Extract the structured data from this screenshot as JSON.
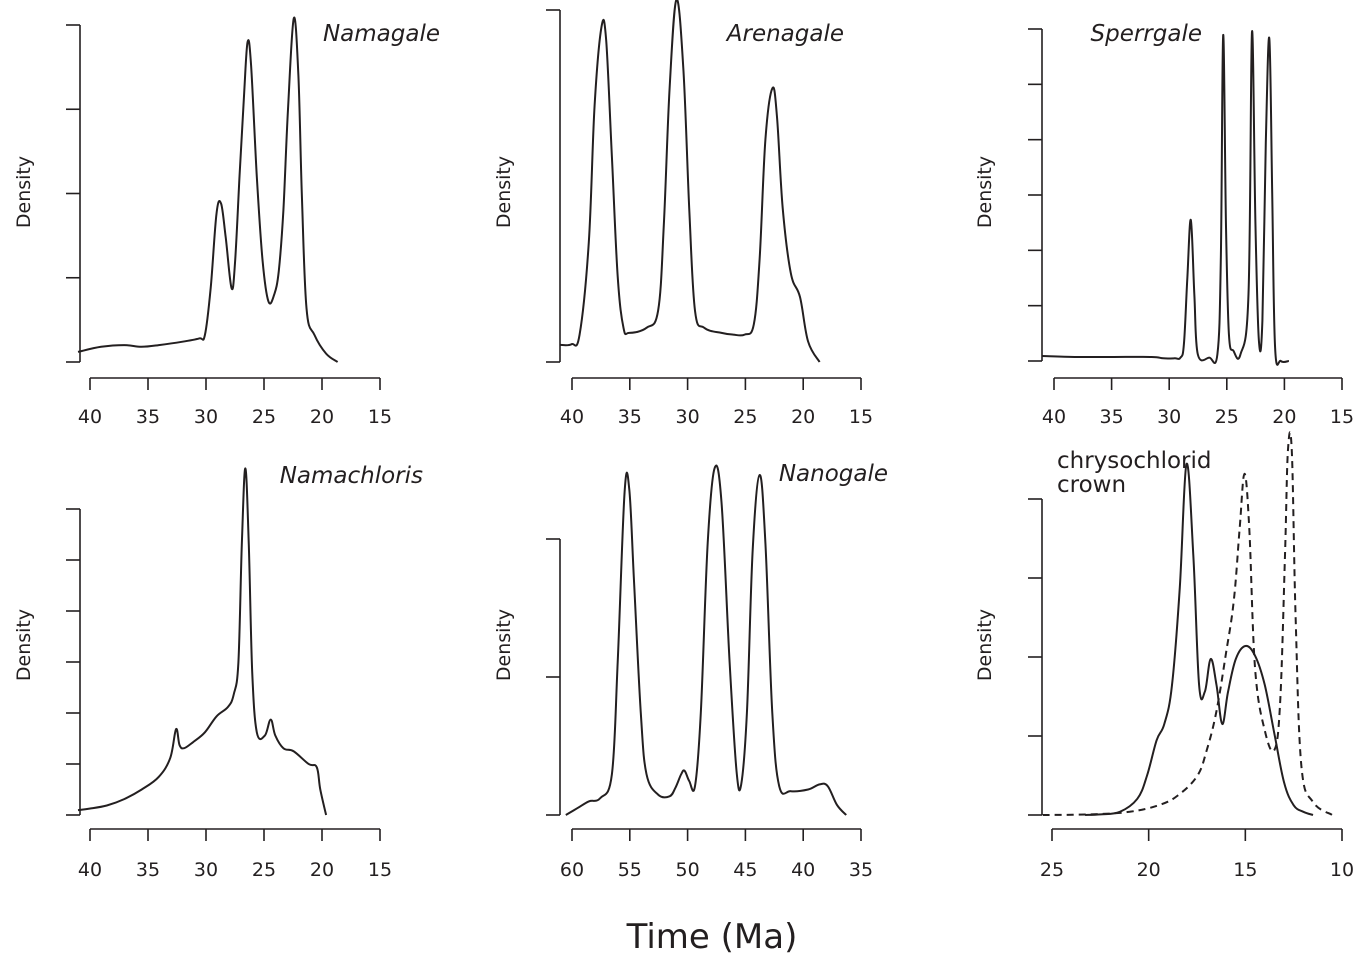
{
  "figure": {
    "x_axis_title": "Time (Ma)"
  },
  "chart_data": [
    {
      "type": "line",
      "title": "Namagale",
      "ylabel": "Density",
      "xlim": [
        41,
        15
      ],
      "x_ticks": [
        40,
        35,
        30,
        25,
        20,
        15
      ],
      "y_tick_count": 5,
      "ymax": 1.0,
      "series": [
        {
          "style": "solid",
          "points": [
            [
              41,
              0.03
            ],
            [
              39,
              0.045
            ],
            [
              37,
              0.05
            ],
            [
              35.5,
              0.045
            ],
            [
              34,
              0.05
            ],
            [
              32,
              0.06
            ],
            [
              30.5,
              0.07
            ],
            [
              30,
              0.08
            ],
            [
              29.5,
              0.22
            ],
            [
              29,
              0.44
            ],
            [
              28.6,
              0.47
            ],
            [
              28.2,
              0.37
            ],
            [
              27.7,
              0.22
            ],
            [
              27.4,
              0.29
            ],
            [
              27,
              0.55
            ],
            [
              26.6,
              0.8
            ],
            [
              26.3,
              0.95
            ],
            [
              26,
              0.88
            ],
            [
              25.5,
              0.55
            ],
            [
              25,
              0.3
            ],
            [
              24.5,
              0.18
            ],
            [
              24,
              0.2
            ],
            [
              23.6,
              0.27
            ],
            [
              23.2,
              0.45
            ],
            [
              22.8,
              0.75
            ],
            [
              22.3,
              1.02
            ],
            [
              21.9,
              0.85
            ],
            [
              21.6,
              0.5
            ],
            [
              21.2,
              0.16
            ],
            [
              20.5,
              0.08
            ],
            [
              19.5,
              0.025
            ],
            [
              18.5,
              0.0
            ]
          ]
        }
      ]
    },
    {
      "type": "line",
      "title": "Arenagale",
      "ylabel": "Density",
      "xlim": [
        41,
        15
      ],
      "x_ticks": [
        40,
        35,
        30,
        25,
        20,
        15
      ],
      "y_tick_count": 2,
      "ymax": 1.0,
      "series": [
        {
          "style": "solid",
          "points": [
            [
              41,
              0.05
            ],
            [
              40,
              0.052
            ],
            [
              39.3,
              0.08
            ],
            [
              38.5,
              0.35
            ],
            [
              38,
              0.75
            ],
            [
              37.4,
              0.98
            ],
            [
              37,
              0.94
            ],
            [
              36.5,
              0.6
            ],
            [
              36,
              0.25
            ],
            [
              35.5,
              0.1
            ],
            [
              35,
              0.085
            ],
            [
              33.5,
              0.1
            ],
            [
              32.5,
              0.15
            ],
            [
              32,
              0.4
            ],
            [
              31.5,
              0.8
            ],
            [
              30.9,
              1.06
            ],
            [
              30.3,
              0.85
            ],
            [
              29.8,
              0.45
            ],
            [
              29.3,
              0.15
            ],
            [
              28.5,
              0.1
            ],
            [
              27,
              0.085
            ],
            [
              26,
              0.08
            ],
            [
              25,
              0.08
            ],
            [
              24.2,
              0.11
            ],
            [
              23.7,
              0.3
            ],
            [
              23.2,
              0.65
            ],
            [
              22.6,
              0.8
            ],
            [
              22.2,
              0.72
            ],
            [
              21.7,
              0.45
            ],
            [
              21,
              0.26
            ],
            [
              20.2,
              0.19
            ],
            [
              19.5,
              0.06
            ],
            [
              18.5,
              0.0
            ]
          ]
        }
      ]
    },
    {
      "type": "line",
      "title": "Sperrgale",
      "ylabel": "Density",
      "xlim": [
        41,
        15
      ],
      "x_ticks": [
        40,
        35,
        30,
        25,
        20,
        15
      ],
      "y_tick_count": 7,
      "ymax": 1.0,
      "series": [
        {
          "style": "solid",
          "points": [
            [
              41,
              0.015
            ],
            [
              38,
              0.012
            ],
            [
              35,
              0.012
            ],
            [
              31.5,
              0.012
            ],
            [
              30.5,
              0.008
            ],
            [
              29.5,
              0.008
            ],
            [
              29,
              0.01
            ],
            [
              28.7,
              0.05
            ],
            [
              28.4,
              0.25
            ],
            [
              28.1,
              0.42
            ],
            [
              27.8,
              0.2
            ],
            [
              27.5,
              0.02
            ],
            [
              26.5,
              0.01
            ],
            [
              25.8,
              0.02
            ],
            [
              25.5,
              0.3
            ],
            [
              25.3,
              0.97
            ],
            [
              25.05,
              0.4
            ],
            [
              24.8,
              0.08
            ],
            [
              24.4,
              0.03
            ],
            [
              23.8,
              0.02
            ],
            [
              23.1,
              0.2
            ],
            [
              22.8,
              0.98
            ],
            [
              22.5,
              0.4
            ],
            [
              22.2,
              0.06
            ],
            [
              21.9,
              0.12
            ],
            [
              21.6,
              0.65
            ],
            [
              21.3,
              0.96
            ],
            [
              21.05,
              0.5
            ],
            [
              20.8,
              0.04
            ],
            [
              20.3,
              0.0
            ],
            [
              19.6,
              0.0
            ]
          ]
        }
      ]
    },
    {
      "type": "line",
      "title": "Namachloris",
      "ylabel": "Density",
      "xlim": [
        41,
        15
      ],
      "x_ticks": [
        40,
        35,
        30,
        25,
        20,
        15
      ],
      "y_tick_count": 7,
      "ymax": 1.0,
      "series": [
        {
          "style": "solid",
          "points": [
            [
              41,
              0.015
            ],
            [
              40,
              0.02
            ],
            [
              38.5,
              0.03
            ],
            [
              37,
              0.05
            ],
            [
              35.5,
              0.08
            ],
            [
              34,
              0.12
            ],
            [
              33,
              0.18
            ],
            [
              32.5,
              0.27
            ],
            [
              32.2,
              0.22
            ],
            [
              31.8,
              0.21
            ],
            [
              31,
              0.23
            ],
            [
              30,
              0.26
            ],
            [
              29,
              0.31
            ],
            [
              28,
              0.34
            ],
            [
              27.5,
              0.38
            ],
            [
              27.1,
              0.48
            ],
            [
              26.8,
              0.85
            ],
            [
              26.5,
              1.09
            ],
            [
              26.2,
              0.85
            ],
            [
              25.9,
              0.45
            ],
            [
              25.5,
              0.26
            ],
            [
              24.8,
              0.25
            ],
            [
              24.3,
              0.3
            ],
            [
              23.9,
              0.25
            ],
            [
              23.2,
              0.21
            ],
            [
              22.3,
              0.2
            ],
            [
              21,
              0.16
            ],
            [
              20.3,
              0.15
            ],
            [
              20,
              0.08
            ],
            [
              19.5,
              0.0
            ]
          ]
        }
      ]
    },
    {
      "type": "line",
      "title": "Nanogale",
      "ylabel": "Density",
      "xlim": [
        61,
        35
      ],
      "x_ticks": [
        60,
        55,
        50,
        45,
        40,
        35
      ],
      "y_tick_count": 3,
      "ymax": 1.0,
      "series": [
        {
          "style": "solid",
          "points": [
            [
              60.5,
              0.0
            ],
            [
              59.5,
              0.02
            ],
            [
              58.5,
              0.04
            ],
            [
              57.5,
              0.05
            ],
            [
              56.5,
              0.12
            ],
            [
              56,
              0.45
            ],
            [
              55.4,
              0.95
            ],
            [
              55,
              0.96
            ],
            [
              54.6,
              0.7
            ],
            [
              54,
              0.3
            ],
            [
              53.5,
              0.12
            ],
            [
              52.5,
              0.06
            ],
            [
              51.5,
              0.055
            ],
            [
              51,
              0.08
            ],
            [
              50.5,
              0.12
            ],
            [
              50.2,
              0.13
            ],
            [
              49.8,
              0.1
            ],
            [
              49.3,
              0.085
            ],
            [
              48.8,
              0.3
            ],
            [
              48.2,
              0.8
            ],
            [
              47.6,
              1.02
            ],
            [
              47,
              0.92
            ],
            [
              46.3,
              0.45
            ],
            [
              45.7,
              0.13
            ],
            [
              45.3,
              0.09
            ],
            [
              44.8,
              0.3
            ],
            [
              44.3,
              0.78
            ],
            [
              43.7,
              1.0
            ],
            [
              43.2,
              0.8
            ],
            [
              42.6,
              0.3
            ],
            [
              42,
              0.085
            ],
            [
              41,
              0.07
            ],
            [
              39.5,
              0.075
            ],
            [
              38.5,
              0.09
            ],
            [
              37.8,
              0.085
            ],
            [
              37,
              0.03
            ],
            [
              36.2,
              0.0
            ]
          ]
        }
      ]
    },
    {
      "type": "line",
      "title": "chrysochlorid crown",
      "ylabel": "Density",
      "xlim": [
        26,
        10
      ],
      "x_ticks": [
        25,
        20,
        15,
        10
      ],
      "y_tick_count": 5,
      "ymax": 1.0,
      "series": [
        {
          "style": "solid",
          "points": [
            [
              23.3,
              0.0
            ],
            [
              22.5,
              0.002
            ],
            [
              21.5,
              0.01
            ],
            [
              20.6,
              0.05
            ],
            [
              20.1,
              0.12
            ],
            [
              19.6,
              0.23
            ],
            [
              19.2,
              0.28
            ],
            [
              18.8,
              0.4
            ],
            [
              18.4,
              0.7
            ],
            [
              18.05,
              1.08
            ],
            [
              17.7,
              0.8
            ],
            [
              17.4,
              0.4
            ],
            [
              17.1,
              0.38
            ],
            [
              16.8,
              0.48
            ],
            [
              16.5,
              0.4
            ],
            [
              16.2,
              0.28
            ],
            [
              15.9,
              0.38
            ],
            [
              15.5,
              0.48
            ],
            [
              15,
              0.52
            ],
            [
              14.5,
              0.49
            ],
            [
              14,
              0.4
            ],
            [
              13.5,
              0.25
            ],
            [
              13,
              0.1
            ],
            [
              12.5,
              0.03
            ],
            [
              12,
              0.01
            ],
            [
              11.5,
              0.0
            ]
          ]
        },
        {
          "style": "dashed",
          "points": [
            [
              25.5,
              0.0
            ],
            [
              23,
              0.002
            ],
            [
              21,
              0.01
            ],
            [
              19.5,
              0.03
            ],
            [
              18.5,
              0.06
            ],
            [
              17.5,
              0.12
            ],
            [
              17,
              0.2
            ],
            [
              16.5,
              0.32
            ],
            [
              16,
              0.5
            ],
            [
              15.6,
              0.66
            ],
            [
              15.3,
              0.88
            ],
            [
              15.05,
              1.05
            ],
            [
              14.8,
              0.88
            ],
            [
              14.5,
              0.45
            ],
            [
              14,
              0.26
            ],
            [
              13.5,
              0.2
            ],
            [
              13.2,
              0.35
            ],
            [
              12.95,
              0.8
            ],
            [
              12.8,
              1.12
            ],
            [
              12.6,
              1.12
            ],
            [
              12.4,
              0.6
            ],
            [
              12.1,
              0.15
            ],
            [
              11.5,
              0.04
            ],
            [
              10.5,
              0.0
            ]
          ]
        }
      ]
    }
  ]
}
